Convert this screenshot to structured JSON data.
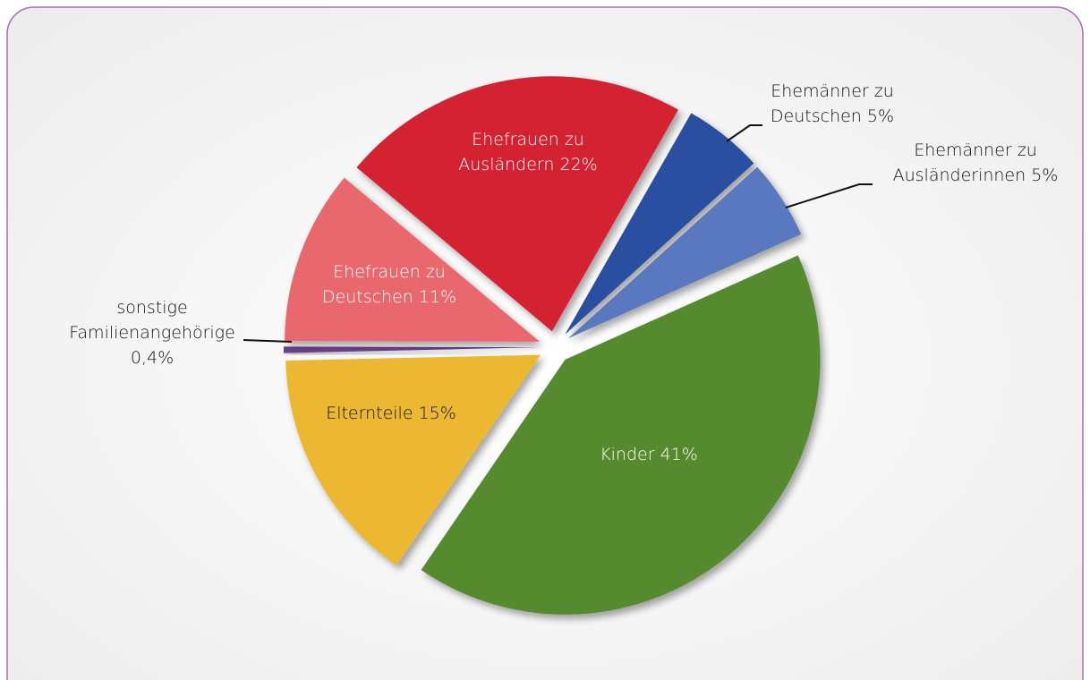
{
  "chart_data": {
    "type": "pie",
    "categories": [
      "Ehefrauen zu Ausländern",
      "Ehemänner zu Deutschen",
      "Ehemänner zu Ausländerinnen",
      "Kinder",
      "Elternteile",
      "sonstige Familienangehörige",
      "Ehefrauen zu Deutschen"
    ],
    "values": [
      22,
      5,
      5,
      41,
      15,
      0.4,
      11
    ],
    "value_labels": [
      "22%",
      "5%",
      "5%",
      "41%",
      "15%",
      "0,4%",
      "11%"
    ],
    "colors": [
      "#d42030",
      "#2a4fa0",
      "#5a78c0",
      "#568a2e",
      "#ecb832",
      "#6a3f8a",
      "#e8686e"
    ]
  }
}
